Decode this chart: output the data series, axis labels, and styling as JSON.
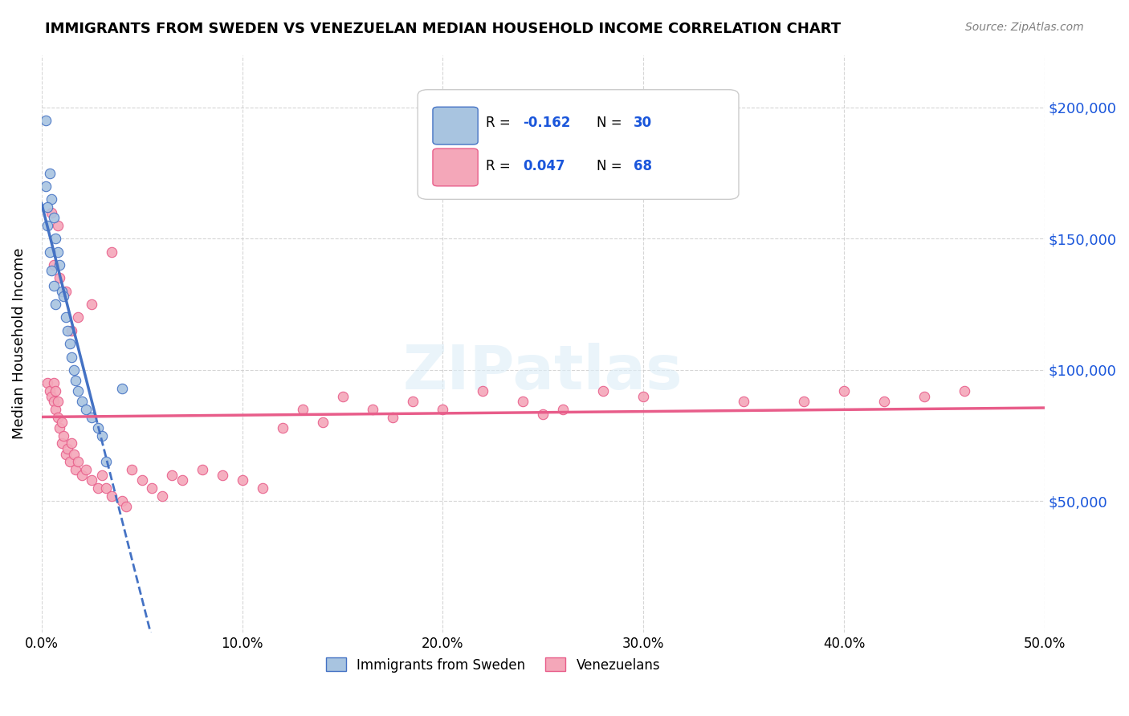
{
  "title": "IMMIGRANTS FROM SWEDEN VS VENEZUELAN MEDIAN HOUSEHOLD INCOME CORRELATION CHART",
  "source": "Source: ZipAtlas.com",
  "ylabel": "Median Household Income",
  "yticks": [
    50000,
    100000,
    150000,
    200000
  ],
  "ytick_labels": [
    "$50,000",
    "$100,000",
    "$150,000",
    "$200,000"
  ],
  "xlim": [
    0.0,
    0.5
  ],
  "ylim": [
    0,
    220000
  ],
  "legend_r1": "-0.162",
  "legend_n1": "30",
  "legend_r2": "0.047",
  "legend_n2": "68",
  "color_sweden": "#a8c4e0",
  "color_venezuela": "#f4a7b9",
  "color_line_sweden": "#4472c4",
  "color_line_venezuela": "#e85d8a",
  "color_r_value": "#1a56db",
  "watermark": "ZIPatlas",
  "sweden_x": [
    0.002,
    0.004,
    0.005,
    0.006,
    0.007,
    0.008,
    0.009,
    0.01,
    0.011,
    0.012,
    0.013,
    0.014,
    0.015,
    0.016,
    0.017,
    0.018,
    0.02,
    0.022,
    0.025,
    0.028,
    0.03,
    0.032,
    0.002,
    0.003,
    0.004,
    0.005,
    0.006,
    0.04,
    0.003,
    0.007
  ],
  "sweden_y": [
    195000,
    175000,
    165000,
    158000,
    150000,
    145000,
    140000,
    130000,
    128000,
    120000,
    115000,
    110000,
    105000,
    100000,
    96000,
    92000,
    88000,
    85000,
    82000,
    78000,
    75000,
    65000,
    170000,
    162000,
    145000,
    138000,
    132000,
    93000,
    155000,
    125000
  ],
  "venezuela_x": [
    0.003,
    0.004,
    0.005,
    0.006,
    0.006,
    0.007,
    0.007,
    0.008,
    0.008,
    0.009,
    0.01,
    0.01,
    0.011,
    0.012,
    0.013,
    0.014,
    0.015,
    0.016,
    0.017,
    0.018,
    0.02,
    0.022,
    0.025,
    0.028,
    0.03,
    0.032,
    0.035,
    0.04,
    0.042,
    0.045,
    0.05,
    0.055,
    0.06,
    0.065,
    0.07,
    0.08,
    0.09,
    0.1,
    0.11,
    0.12,
    0.13,
    0.14,
    0.15,
    0.165,
    0.175,
    0.185,
    0.2,
    0.22,
    0.24,
    0.26,
    0.28,
    0.3,
    0.35,
    0.4,
    0.42,
    0.44,
    0.005,
    0.006,
    0.008,
    0.009,
    0.012,
    0.015,
    0.018,
    0.025,
    0.035,
    0.25,
    0.38,
    0.46
  ],
  "venezuela_y": [
    95000,
    92000,
    90000,
    88000,
    95000,
    85000,
    92000,
    82000,
    88000,
    78000,
    80000,
    72000,
    75000,
    68000,
    70000,
    65000,
    72000,
    68000,
    62000,
    65000,
    60000,
    62000,
    58000,
    55000,
    60000,
    55000,
    52000,
    50000,
    48000,
    62000,
    58000,
    55000,
    52000,
    60000,
    58000,
    62000,
    60000,
    58000,
    55000,
    78000,
    85000,
    80000,
    90000,
    85000,
    82000,
    88000,
    85000,
    92000,
    88000,
    85000,
    92000,
    90000,
    88000,
    92000,
    88000,
    90000,
    160000,
    140000,
    155000,
    135000,
    130000,
    115000,
    120000,
    125000,
    145000,
    83000,
    88000,
    92000
  ]
}
